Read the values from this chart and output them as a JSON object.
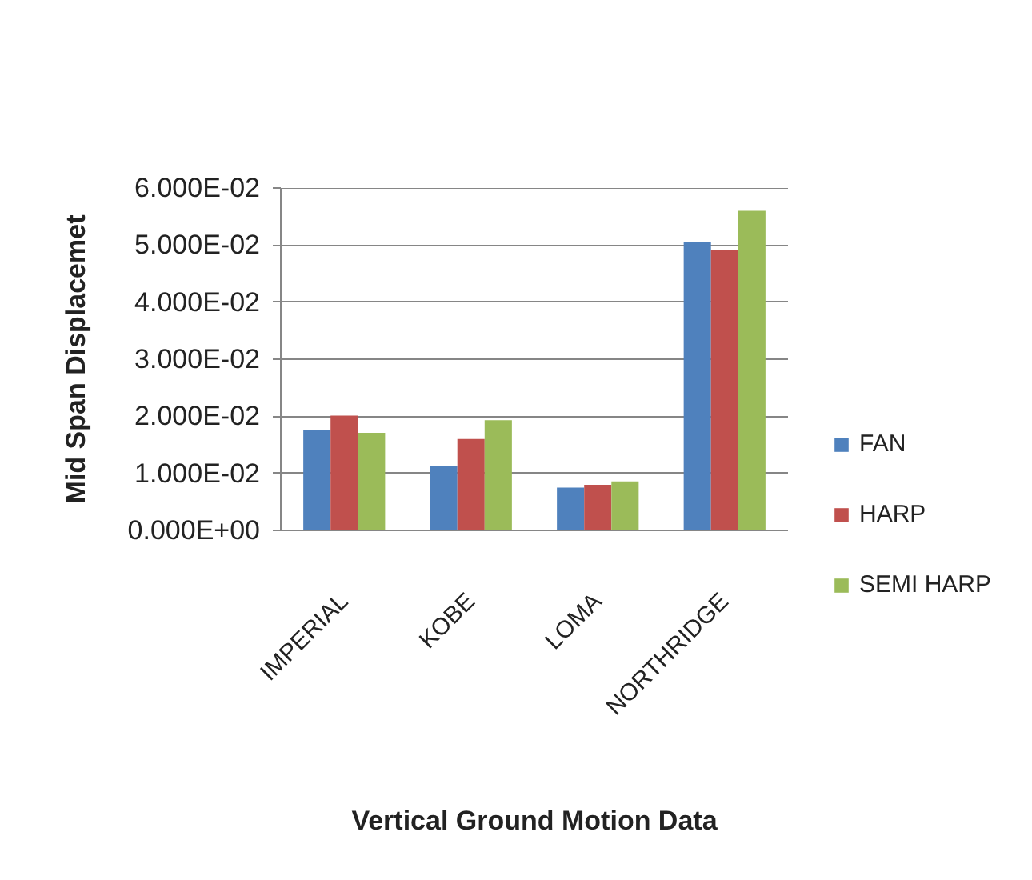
{
  "chart_data": {
    "type": "bar",
    "xlabel": "Vertical Ground Motion Data",
    "ylabel": "Mid Span Displacemet",
    "categories": [
      "IMPERIAL",
      "KOBE",
      "LOMA",
      "NORTHRIDGE"
    ],
    "series": [
      {
        "name": "FAN",
        "color": "#4f81bd",
        "values": [
          0.0176,
          0.0113,
          0.0075,
          0.0506
        ]
      },
      {
        "name": "HARP",
        "color": "#c0504d",
        "values": [
          0.0201,
          0.016,
          0.008,
          0.0491
        ]
      },
      {
        "name": "SEMI HARP",
        "color": "#9bbb59",
        "values": [
          0.0171,
          0.0193,
          0.0086,
          0.056
        ]
      }
    ],
    "ylim": [
      0,
      0.06
    ],
    "yticks": [
      {
        "value": 0,
        "label": "0.000E+00"
      },
      {
        "value": 0.01,
        "label": "1.000E-02"
      },
      {
        "value": 0.02,
        "label": "2.000E-02"
      },
      {
        "value": 0.03,
        "label": "3.000E-02"
      },
      {
        "value": 0.04,
        "label": "4.000E-02"
      },
      {
        "value": 0.05,
        "label": "5.000E-02"
      },
      {
        "value": 0.06,
        "label": "6.000E-02"
      }
    ],
    "grid": "y",
    "legend": "right"
  }
}
